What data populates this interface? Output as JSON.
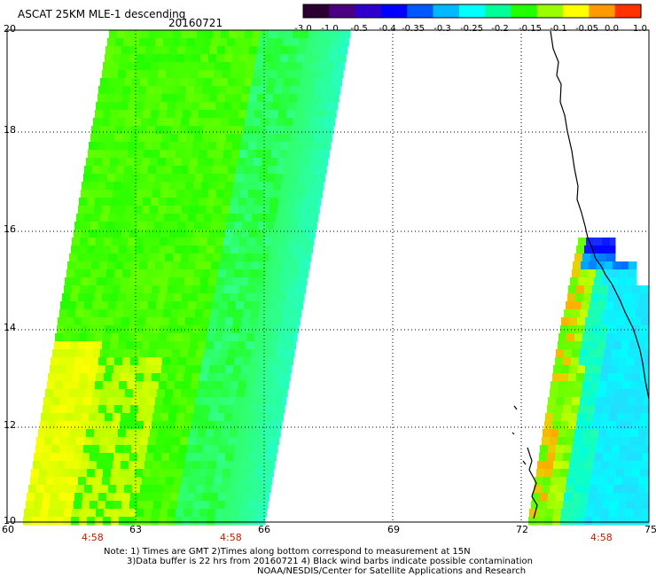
{
  "header": {
    "title": "ASCAT 25KM MLE-1 descending",
    "date": "20160721"
  },
  "colorbar": {
    "labels": [
      "-3.0",
      "-1.0",
      "-0.5",
      "-0.4",
      "-0.35",
      "-0.3",
      "-0.25",
      "-0.2",
      "-0.15",
      "-0.1",
      "-0.05",
      "0.0",
      "1.0"
    ],
    "colors": [
      "#2a0033",
      "#4b0082",
      "#2f00cc",
      "#0000ff",
      "#0058ff",
      "#00b8ff",
      "#00ffff",
      "#00ff99",
      "#22ff00",
      "#99ff00",
      "#ffff00",
      "#ff9900",
      "#ff3300"
    ]
  },
  "map": {
    "lat_labels": [
      "20",
      "18",
      "16",
      "14",
      "12",
      "10"
    ],
    "lon_labels": [
      "60",
      "63",
      "66",
      "69",
      "72",
      "75"
    ],
    "time_labels": [
      "4:58",
      "4:58",
      "4:58"
    ]
  },
  "notes": {
    "line1": "Note: 1) Times are GMT 2)Times along bottom correspond to measurement at 15N",
    "line2": "3)Data buffer is 22 hrs from 20160721 4) Black wind barbs indicate possible contamination",
    "line3": "NOAA/NESDIS/Center for Satellite Applications and Research"
  }
}
